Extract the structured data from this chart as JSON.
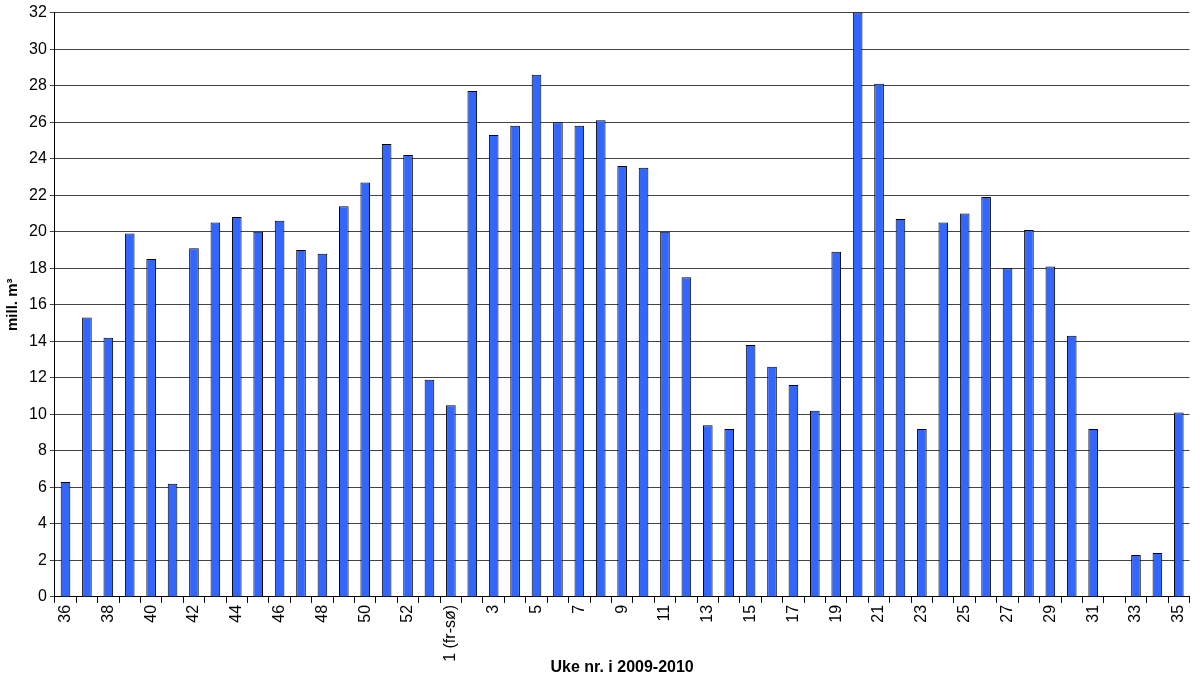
{
  "chart_data": {
    "type": "bar",
    "xlabel": "Uke nr. i 2009-2010",
    "ylabel": "mill. m³",
    "categories": [
      "36",
      null,
      "38",
      null,
      "40",
      null,
      "42",
      null,
      "44",
      null,
      "46",
      null,
      "48",
      null,
      "50",
      null,
      "52",
      null,
      "1 (fr-sø)",
      null,
      "3",
      null,
      "5",
      null,
      "7",
      null,
      "9",
      null,
      "11",
      null,
      "13",
      null,
      "15",
      null,
      "17",
      null,
      "19",
      null,
      "21",
      null,
      "23",
      null,
      "25",
      null,
      "27",
      null,
      "29",
      null,
      "31",
      null,
      "33",
      null,
      "35"
    ],
    "values": [
      6.3,
      15.3,
      14.2,
      19.9,
      18.5,
      6.2,
      19.1,
      20.5,
      20.8,
      20.0,
      20.6,
      19.0,
      18.8,
      21.4,
      22.7,
      24.8,
      24.2,
      11.9,
      10.5,
      27.7,
      25.3,
      25.8,
      28.6,
      26.0,
      25.8,
      26.1,
      23.6,
      23.5,
      20.0,
      17.5,
      9.4,
      9.2,
      13.8,
      12.6,
      11.6,
      10.2,
      18.9,
      32,
      28.1,
      20.7,
      9.2,
      20.5,
      21.0,
      21.9,
      18.0,
      20.1,
      18.1,
      14.3,
      9.2,
      null,
      2.3,
      2.4,
      10.1
    ],
    "color": "#3366ff",
    "ylim": [
      0,
      32
    ],
    "yticks": [
      0,
      2,
      4,
      6,
      8,
      10,
      12,
      14,
      16,
      18,
      20,
      22,
      24,
      26,
      28,
      30,
      32
    ],
    "grid": "y",
    "legend": false
  }
}
